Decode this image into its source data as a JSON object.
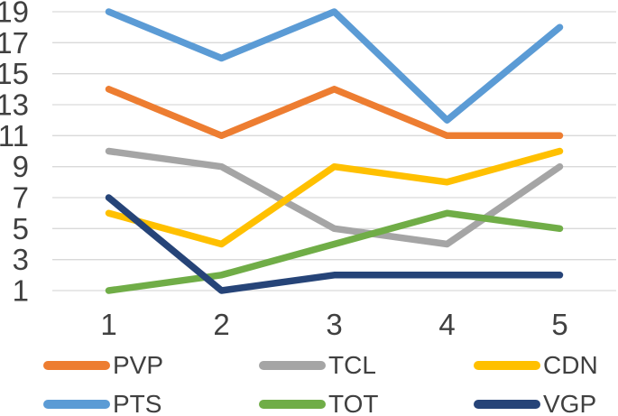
{
  "chart_data": {
    "type": "line",
    "title": "",
    "xlabel": "",
    "ylabel": "",
    "x": [
      1,
      2,
      3,
      4,
      5
    ],
    "x_tick_labels": [
      "1",
      "2",
      "3",
      "4",
      "5"
    ],
    "y_ticks": [
      1,
      3,
      5,
      7,
      9,
      11,
      13,
      15,
      17,
      19
    ],
    "ylim": [
      1,
      19
    ],
    "grid": "horizontal-only",
    "legend_position": "bottom",
    "legend_rows": [
      [
        "PVP",
        "TCL",
        "CDN"
      ],
      [
        "PTS",
        "TOT",
        "VGP"
      ]
    ],
    "series": [
      {
        "name": "PVP",
        "color": "#ED7D31",
        "values": [
          14,
          11,
          14,
          11,
          11
        ]
      },
      {
        "name": "TCL",
        "color": "#A5A5A5",
        "values": [
          10,
          9,
          5,
          4,
          9
        ]
      },
      {
        "name": "CDN",
        "color": "#FFC000",
        "values": [
          6,
          4,
          9,
          8,
          10
        ]
      },
      {
        "name": "PTS",
        "color": "#5B9BD5",
        "values": [
          19,
          16,
          19,
          12,
          18
        ]
      },
      {
        "name": "TOT",
        "color": "#70AD47",
        "values": [
          1,
          2,
          4,
          6,
          5
        ]
      },
      {
        "name": "VGP",
        "color": "#264478",
        "values": [
          7,
          1,
          2,
          2,
          2
        ]
      }
    ],
    "colors": {
      "gridline": "#D9D9D9",
      "tick_label": "#404040",
      "background": "#FFFFFF"
    }
  }
}
